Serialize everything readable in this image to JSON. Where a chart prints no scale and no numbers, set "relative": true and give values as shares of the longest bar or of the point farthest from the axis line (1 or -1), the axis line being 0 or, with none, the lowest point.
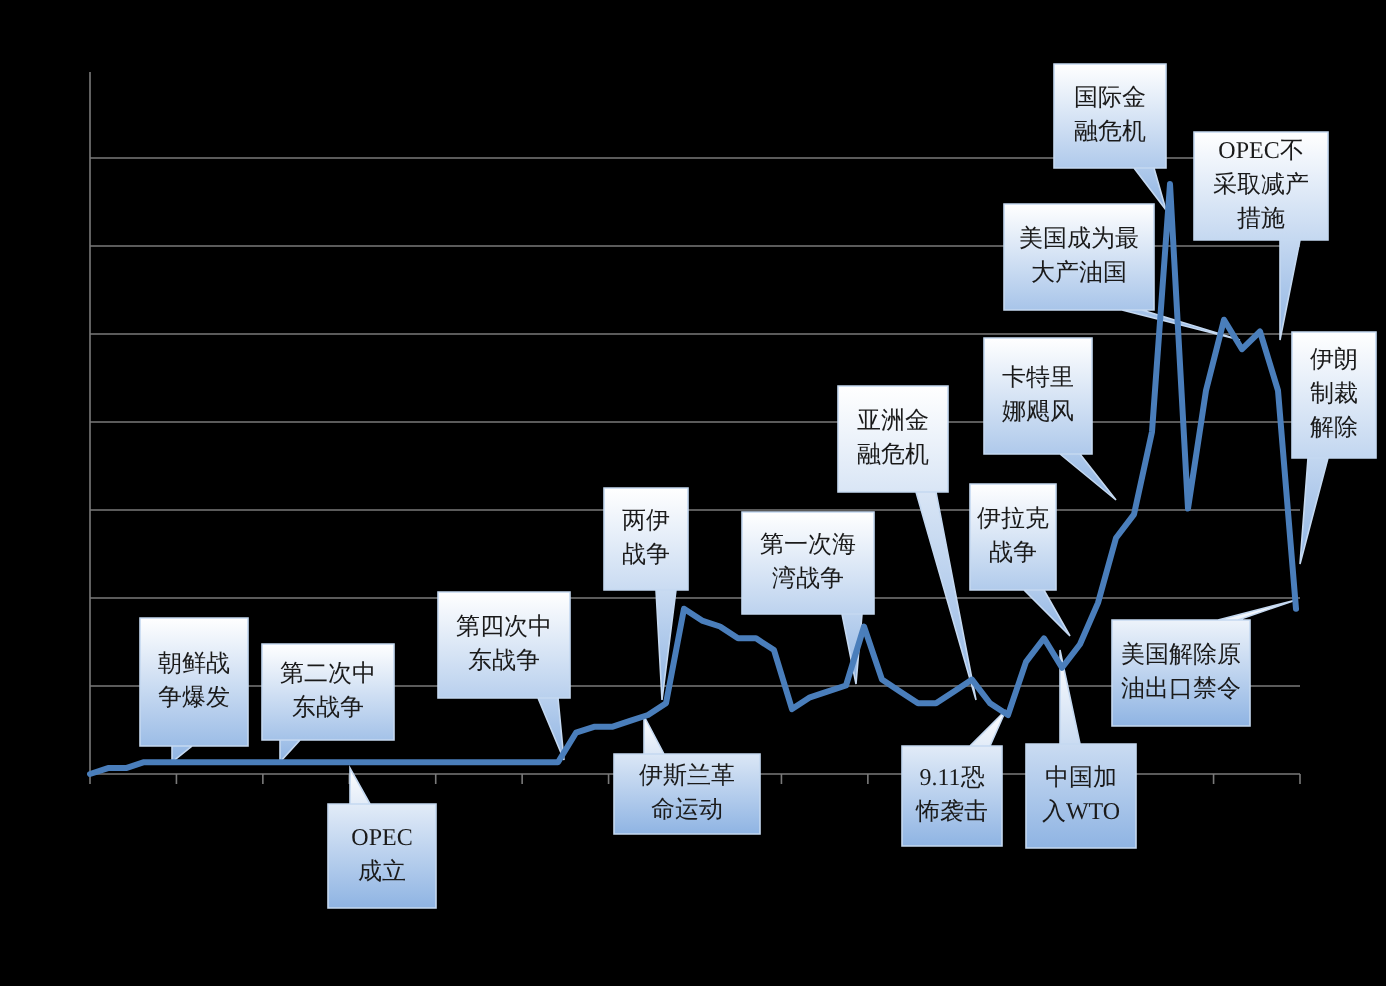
{
  "chart_data": {
    "type": "line",
    "relative": true,
    "grid": "y",
    "color": "#4a7ebb",
    "categories": [
      null,
      null,
      null,
      null,
      null,
      null,
      null,
      null,
      null,
      null,
      null,
      null,
      null,
      null,
      null,
      null,
      null,
      null,
      null,
      null,
      null,
      null,
      null,
      null,
      null,
      null,
      null,
      null,
      null,
      null,
      null,
      null,
      null,
      null,
      null,
      null,
      null,
      null,
      null,
      null,
      null,
      null,
      null,
      null,
      null,
      null,
      null,
      null,
      null,
      null,
      null,
      null,
      null,
      null,
      null,
      null,
      null,
      null,
      null,
      null,
      null,
      null,
      null,
      null,
      null,
      null,
      null,
      null
    ],
    "values": [
      0,
      0.01,
      0.01,
      0.02,
      0.02,
      0.02,
      0.02,
      0.02,
      0.02,
      0.02,
      0.02,
      0.02,
      0.02,
      0.02,
      0.02,
      0.02,
      0.02,
      0.02,
      0.02,
      0.02,
      0.02,
      0.02,
      0.02,
      0.02,
      0.02,
      0.02,
      0.02,
      0.07,
      0.08,
      0.08,
      0.09,
      0.1,
      0.12,
      0.28,
      0.26,
      0.25,
      0.23,
      0.23,
      0.21,
      0.11,
      0.13,
      0.14,
      0.15,
      0.25,
      0.16,
      0.14,
      0.12,
      0.12,
      0.14,
      0.16,
      0.12,
      0.1,
      0.19,
      0.23,
      0.18,
      0.22,
      0.29,
      0.4,
      0.44,
      0.58,
      1,
      0.45,
      0.65,
      0.77,
      0.72,
      0.75,
      0.65,
      0.28
    ],
    "annotations": [
      "朝鲜战争爆发",
      "第二次中东战争",
      "OPEC成立",
      "第四次中东战争",
      "两伊战争",
      "伊斯兰革命运动",
      "第一次海湾战争",
      "亚洲金融危机",
      "伊拉克战争",
      "9.11恐怖袭击",
      "中国加入WTO",
      "卡特里娜飓风",
      "美国成为最大产油国",
      "国际金融危机",
      "OPEC不采取减产措施",
      "伊朗制裁解除",
      "美国解除原油出口禁令"
    ]
  }
}
